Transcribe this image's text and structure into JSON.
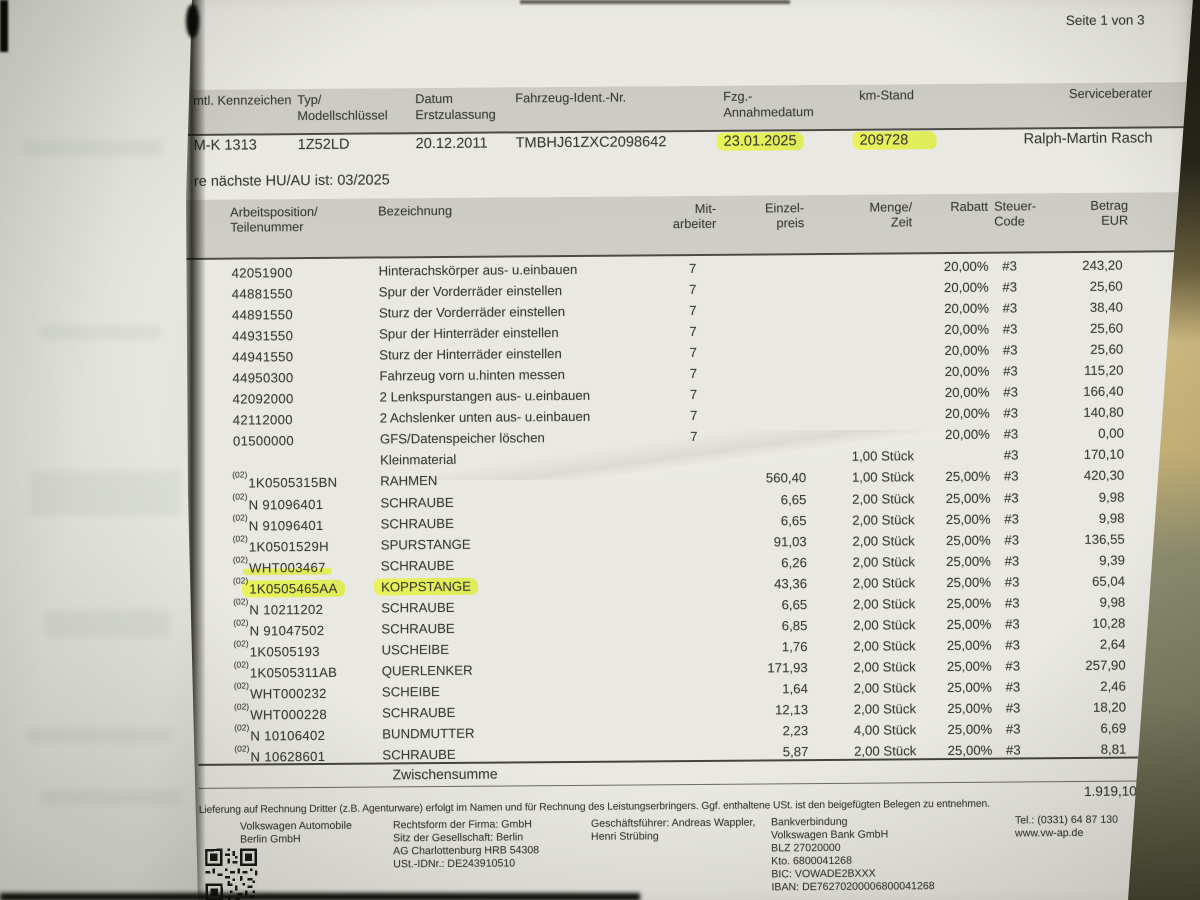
{
  "page_indicator": "Seite 1 von 3",
  "vehicle_header": {
    "columns": [
      {
        "label_lines": [
          "mtl. Kennzeichen"
        ],
        "value": "M-K 1313",
        "highlight": false
      },
      {
        "label_lines": [
          "Typ/",
          "Modellschlüssel"
        ],
        "value": "1Z52LD",
        "highlight": false
      },
      {
        "label_lines": [
          "Datum",
          "Erstzulassung"
        ],
        "value": "20.12.2011",
        "highlight": false
      },
      {
        "label_lines": [
          "Fahrzeug-Ident.-Nr."
        ],
        "value": "TMBHJ61ZXC2098642",
        "highlight": false
      },
      {
        "label_lines": [
          "Fzg.-",
          "Annahmedatum"
        ],
        "value": "23.01.2025",
        "highlight": true
      },
      {
        "label_lines": [
          "km-Stand"
        ],
        "value": "209728",
        "highlight": true
      },
      {
        "label_lines": [
          "Serviceberater"
        ],
        "value": "Ralph-Martin Rasch",
        "highlight": false
      }
    ]
  },
  "hu_notice": "re nächste HU/AU ist: 03/2025",
  "work_table": {
    "headers": {
      "col_position": [
        "Arbeitsposition/",
        "Teilenummer"
      ],
      "col_description": [
        "Bezeichnung",
        ""
      ],
      "col_mechanic": [
        "Mit-",
        "arbeiter"
      ],
      "col_unit_price": [
        "Einzel-",
        "preis"
      ],
      "col_quantity": [
        "Menge/",
        "Zeit"
      ],
      "col_discount": [
        "Rabatt",
        ""
      ],
      "col_tax": [
        "Steuer-",
        "Code"
      ],
      "col_amount": [
        "Betrag",
        "EUR"
      ]
    },
    "rows": [
      {
        "prefix": "",
        "number": "42051900",
        "description": "Hinterachskörper aus- u.einbauen",
        "mechanic": "7",
        "unit_price": "",
        "quantity": "",
        "discount": "20,00%",
        "tax": "#3",
        "amount": "243,20"
      },
      {
        "prefix": "",
        "number": "44881550",
        "description": "Spur der Vorderräder einstellen",
        "mechanic": "7",
        "unit_price": "",
        "quantity": "",
        "discount": "20,00%",
        "tax": "#3",
        "amount": "25,60"
      },
      {
        "prefix": "",
        "number": "44891550",
        "description": "Sturz der Vorderräder einstellen",
        "mechanic": "7",
        "unit_price": "",
        "quantity": "",
        "discount": "20,00%",
        "tax": "#3",
        "amount": "38,40"
      },
      {
        "prefix": "",
        "number": "44931550",
        "description": "Spur der Hinterräder einstellen",
        "mechanic": "7",
        "unit_price": "",
        "quantity": "",
        "discount": "20,00%",
        "tax": "#3",
        "amount": "25,60"
      },
      {
        "prefix": "",
        "number": "44941550",
        "description": "Sturz der Hinterräder einstellen",
        "mechanic": "7",
        "unit_price": "",
        "quantity": "",
        "discount": "20,00%",
        "tax": "#3",
        "amount": "25,60"
      },
      {
        "prefix": "",
        "number": "44950300",
        "description": "Fahrzeug vorn u.hinten messen",
        "mechanic": "7",
        "unit_price": "",
        "quantity": "",
        "discount": "20,00%",
        "tax": "#3",
        "amount": "115,20"
      },
      {
        "prefix": "",
        "number": "42092000",
        "description": "2 Lenkspurstangen aus- u.einbauen",
        "mechanic": "7",
        "unit_price": "",
        "quantity": "",
        "discount": "20,00%",
        "tax": "#3",
        "amount": "166,40"
      },
      {
        "prefix": "",
        "number": "42112000",
        "description": "2 Achslenker unten aus- u.einbauen",
        "mechanic": "7",
        "unit_price": "",
        "quantity": "",
        "discount": "20,00%",
        "tax": "#3",
        "amount": "140,80"
      },
      {
        "prefix": "",
        "number": "01500000",
        "description": "GFS/Datenspeicher löschen",
        "mechanic": "7",
        "unit_price": "",
        "quantity": "",
        "discount": "20,00%",
        "tax": "#3",
        "amount": "0,00"
      },
      {
        "prefix": "",
        "number": "",
        "description": "Kleinmaterial",
        "mechanic": "",
        "unit_price": "",
        "quantity": "1,00 Stück",
        "discount": "",
        "tax": "#3",
        "amount": "170,10"
      },
      {
        "prefix": "(02)",
        "number": "1K0505315BN",
        "description": "RAHMEN",
        "mechanic": "",
        "unit_price": "560,40",
        "quantity": "1,00 Stück",
        "discount": "25,00%",
        "tax": "#3",
        "amount": "420,30"
      },
      {
        "prefix": "(02)",
        "number": "N 91096401",
        "description": "SCHRAUBE",
        "mechanic": "",
        "unit_price": "6,65",
        "quantity": "2,00 Stück",
        "discount": "25,00%",
        "tax": "#3",
        "amount": "9,98"
      },
      {
        "prefix": "(02)",
        "number": "N 91096401",
        "description": "SCHRAUBE",
        "mechanic": "",
        "unit_price": "6,65",
        "quantity": "2,00 Stück",
        "discount": "25,00%",
        "tax": "#3",
        "amount": "9,98"
      },
      {
        "prefix": "(02)",
        "number": "1K0501529H",
        "description": "SPURSTANGE",
        "mechanic": "",
        "unit_price": "91,03",
        "quantity": "2,00 Stück",
        "discount": "25,00%",
        "tax": "#3",
        "amount": "136,55"
      },
      {
        "prefix": "(02)",
        "number": "WHT003467",
        "description": "SCHRAUBE",
        "mechanic": "",
        "unit_price": "6,26",
        "quantity": "2,00 Stück",
        "discount": "25,00%",
        "tax": "#3",
        "amount": "9,39",
        "pn_highlight": "underline"
      },
      {
        "prefix": "(02)",
        "number": "1K0505465AA",
        "description": "KOPPSTANGE",
        "mechanic": "",
        "unit_price": "43,36",
        "quantity": "2,00 Stück",
        "discount": "25,00%",
        "tax": "#3",
        "amount": "65,04",
        "pn_highlight": "full",
        "desc_highlight": true
      },
      {
        "prefix": "(02)",
        "number": "N 10211202",
        "description": "SCHRAUBE",
        "mechanic": "",
        "unit_price": "6,65",
        "quantity": "2,00 Stück",
        "discount": "25,00%",
        "tax": "#3",
        "amount": "9,98"
      },
      {
        "prefix": "(02)",
        "number": "N 91047502",
        "description": "SCHRAUBE",
        "mechanic": "",
        "unit_price": "6,85",
        "quantity": "2,00 Stück",
        "discount": "25,00%",
        "tax": "#3",
        "amount": "10,28"
      },
      {
        "prefix": "(02)",
        "number": "1K0505193",
        "description": "USCHEIBE",
        "mechanic": "",
        "unit_price": "1,76",
        "quantity": "2,00 Stück",
        "discount": "25,00%",
        "tax": "#3",
        "amount": "2,64"
      },
      {
        "prefix": "(02)",
        "number": "1K0505311AB",
        "description": "QUERLENKER",
        "mechanic": "",
        "unit_price": "171,93",
        "quantity": "2,00 Stück",
        "discount": "25,00%",
        "tax": "#3",
        "amount": "257,90"
      },
      {
        "prefix": "(02)",
        "number": "WHT000232",
        "description": "SCHEIBE",
        "mechanic": "",
        "unit_price": "1,64",
        "quantity": "2,00 Stück",
        "discount": "25,00%",
        "tax": "#3",
        "amount": "2,46"
      },
      {
        "prefix": "(02)",
        "number": "WHT000228",
        "description": "SCHRAUBE",
        "mechanic": "",
        "unit_price": "12,13",
        "quantity": "2,00 Stück",
        "discount": "25,00%",
        "tax": "#3",
        "amount": "18,20"
      },
      {
        "prefix": "(02)",
        "number": "N 10106402",
        "description": "BUNDMUTTER",
        "mechanic": "",
        "unit_price": "2,23",
        "quantity": "4,00 Stück",
        "discount": "25,00%",
        "tax": "#3",
        "amount": "6,69"
      },
      {
        "prefix": "(02)",
        "number": "N 10628601",
        "description": "SCHRAUBE",
        "mechanic": "",
        "unit_price": "5,87",
        "quantity": "2,00 Stück",
        "discount": "25,00%",
        "tax": "#3",
        "amount": "8,81"
      }
    ]
  },
  "subtotal": {
    "label": "Zwischensumme",
    "amount": "1.919,10"
  },
  "disclaimer": "Lieferung auf Rechnung Dritter (z.B. Agenturware) erfolgt im Namen und für Rechnung des Leistungserbringers. Ggf. enthaltene USt. ist den beigefügten Belegen zu entnehmen.",
  "footer_columns": [
    {
      "lines": [
        "Volkswagen Automobile",
        "Berlin GmbH"
      ]
    },
    {
      "lines": [
        "Rechtsform der Firma: GmbH",
        "Sitz der Gesellschaft: Berlin",
        "AG Charlottenburg HRB 54308",
        "USt.-IDNr.: DE243910510"
      ]
    },
    {
      "lines": [
        "Geschäftsführer: Andreas Wappler,",
        "Henri Strübing"
      ]
    },
    {
      "lines": [
        "Bankverbindung",
        "Volkswagen Bank GmbH",
        "BLZ 27020000",
        "Kto. 6800041268",
        "BIC: VOWADE2BXXX",
        "IBAN: DE76270200006800041268"
      ]
    },
    {
      "lines": [
        "Tel.: (0331) 64 87 130",
        "www.vw-ap.de"
      ]
    }
  ],
  "highlight_color": "#e7f04d"
}
